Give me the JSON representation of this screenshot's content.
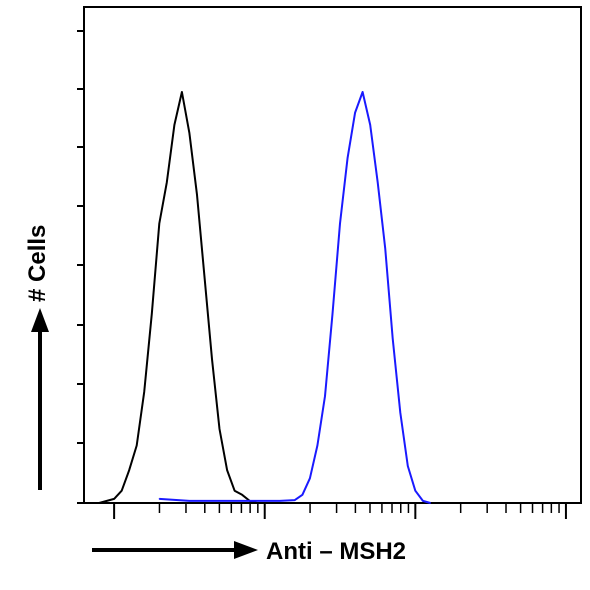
{
  "chart_data": {
    "type": "line",
    "title": "",
    "xlabel": "Anti – MSH2",
    "ylabel": "# Cells",
    "x_scale": "log",
    "xlim": [
      -0.2,
      3.1
    ],
    "ylim": [
      0,
      100
    ],
    "grid": false,
    "legend": "none",
    "series": [
      {
        "color": "#000000",
        "x": [
          -0.1,
          0.0,
          0.05,
          0.1,
          0.15,
          0.2,
          0.25,
          0.3,
          0.35,
          0.4,
          0.45,
          0.5,
          0.55,
          0.6,
          0.65,
          0.7,
          0.75,
          0.8,
          0.85,
          0.9,
          0.95,
          1.0
        ],
        "y": [
          0,
          1,
          3,
          8,
          14,
          27,
          46,
          68,
          78,
          92,
          100,
          90,
          75,
          55,
          35,
          18,
          8,
          3,
          2,
          0.5,
          0,
          0
        ]
      },
      {
        "color": "#1a1aff",
        "x": [
          0.3,
          0.5,
          0.7,
          1.1,
          1.2,
          1.25,
          1.3,
          1.35,
          1.4,
          1.45,
          1.5,
          1.55,
          1.6,
          1.65,
          1.7,
          1.75,
          1.8,
          1.85,
          1.9,
          1.95,
          2.0,
          2.05,
          2.1
        ],
        "y": [
          1,
          0.5,
          0.5,
          0.5,
          0.7,
          2,
          6,
          14,
          26,
          46,
          68,
          84,
          95,
          100,
          92,
          78,
          62,
          40,
          22,
          9,
          3,
          0.5,
          0
        ]
      }
    ]
  }
}
